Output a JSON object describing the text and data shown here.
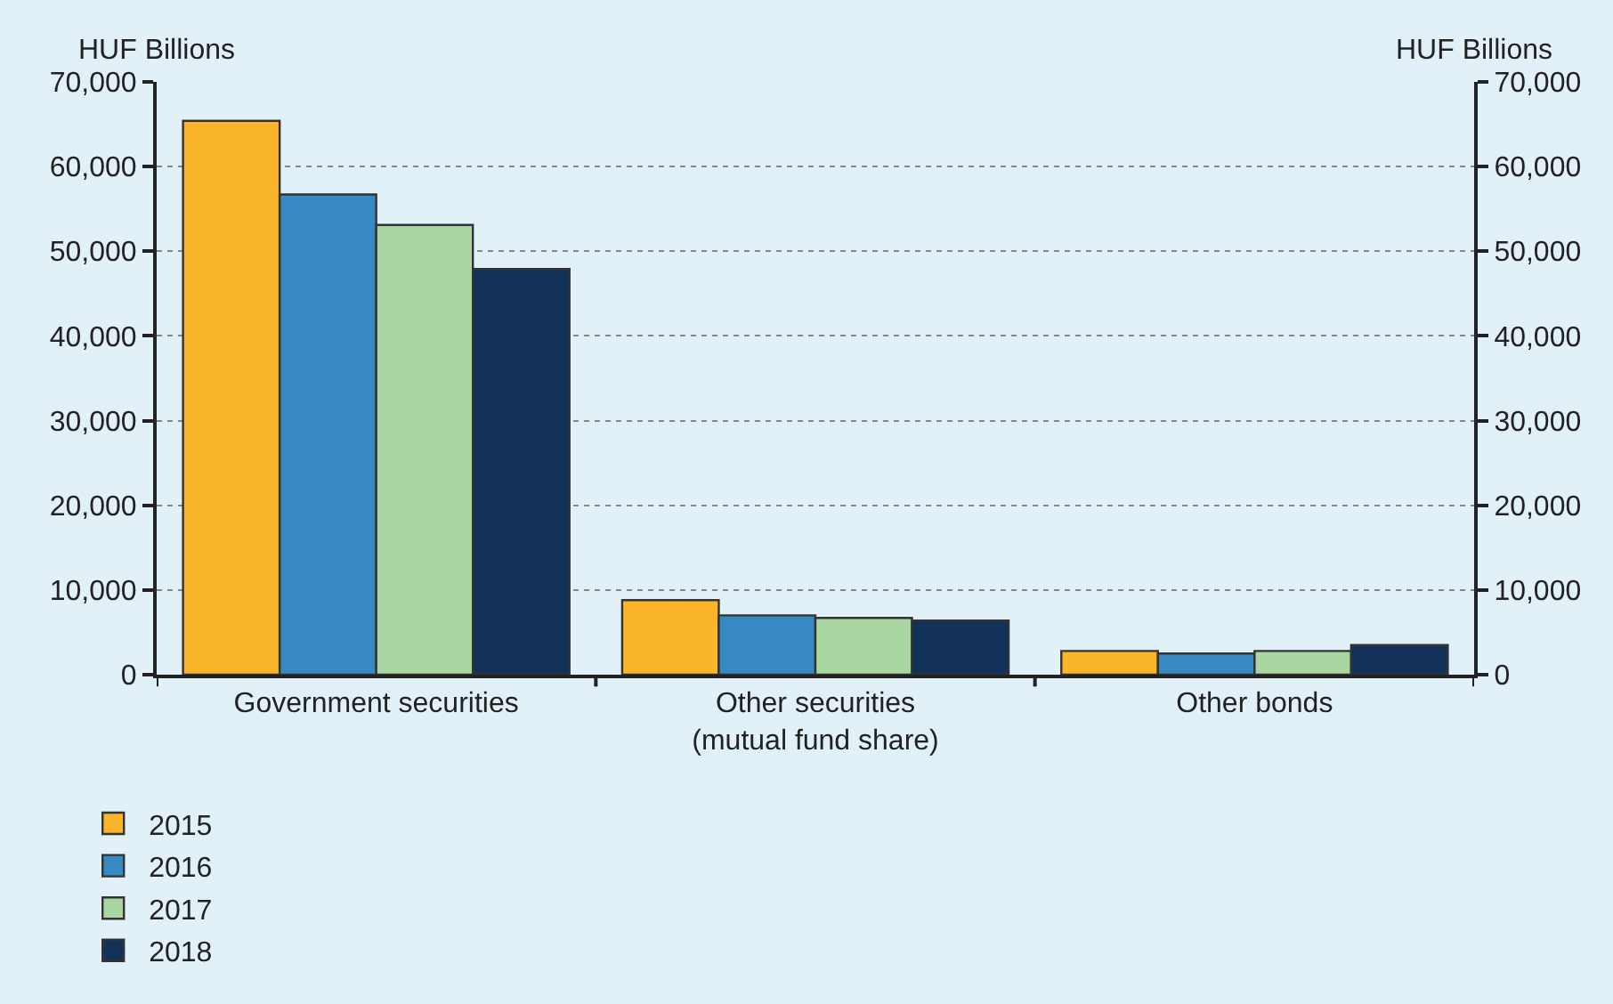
{
  "chart_data": {
    "type": "bar",
    "ylabel": "HUF Billions",
    "y2label": "HUF Billions",
    "categories": [
      "Government securities",
      "Other securities\n(mutual fund share)",
      "Other bonds"
    ],
    "series": [
      {
        "name": "2015",
        "color": "#fbb52b",
        "values": [
          65400,
          8800,
          2800
        ]
      },
      {
        "name": "2016",
        "color": "#3789c2",
        "values": [
          56700,
          7000,
          2500
        ]
      },
      {
        "name": "2017",
        "color": "#a9d5a0",
        "values": [
          53100,
          6700,
          2800
        ]
      },
      {
        "name": "2018",
        "color": "#13325a",
        "values": [
          47900,
          6400,
          3500
        ]
      }
    ],
    "ylim": [
      0,
      70000
    ],
    "yticks": [
      {
        "value": 0,
        "label": "0"
      },
      {
        "value": 10000,
        "label": "10,000"
      },
      {
        "value": 20000,
        "label": "20,000"
      },
      {
        "value": 30000,
        "label": "30,000"
      },
      {
        "value": 40000,
        "label": "40,000"
      },
      {
        "value": 50000,
        "label": "50,000"
      },
      {
        "value": 60000,
        "label": "60,000"
      },
      {
        "value": 70000,
        "label": "70,000"
      }
    ],
    "y2lim": [
      0,
      70000
    ],
    "y2ticks": [
      {
        "value": 0,
        "label": "0"
      },
      {
        "value": 10000,
        "label": "10,000"
      },
      {
        "value": 20000,
        "label": "20,000"
      },
      {
        "value": 30000,
        "label": "30,000"
      },
      {
        "value": 40000,
        "label": "40,000"
      },
      {
        "value": 50000,
        "label": "50,000"
      },
      {
        "value": 60000,
        "label": "60,000"
      },
      {
        "value": 70000,
        "label": "70,000"
      }
    ],
    "grid": "y",
    "legend": "bottom left"
  }
}
